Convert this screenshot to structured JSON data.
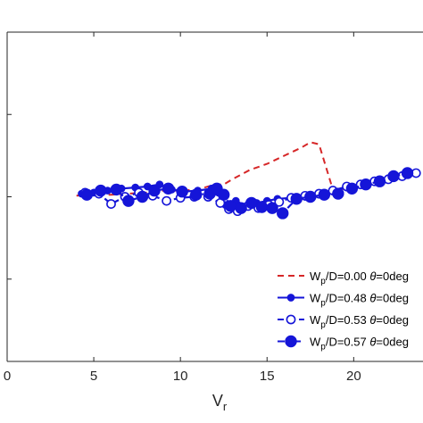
{
  "chart_data": {
    "type": "line",
    "title": "",
    "xlabel": "V",
    "xlabel_sub": "r",
    "ylabel": "",
    "xlim": [
      0,
      24
    ],
    "ylim": [
      0,
      1.6
    ],
    "xticks": [
      0,
      5,
      10,
      15,
      20
    ],
    "xtick_labels": [
      "0",
      "5",
      "10",
      "15",
      "20"
    ],
    "yticks": [
      0.4,
      0.8,
      1.2
    ],
    "grid": false,
    "legend_position": "bottom-right",
    "series": [
      {
        "name": "W_p/D=0.00 θ=0deg",
        "legend_label": {
          "pre": "W",
          "sub": "p",
          "post": "/D=0.00 ",
          "theta": "θ",
          "tail": "=0deg"
        },
        "color": "#d62728",
        "style": "dashed",
        "marker": "none",
        "x": [
          4.0,
          5.0,
          6.0,
          7.0,
          8.0,
          9.0,
          10.0,
          11.0,
          12.0,
          12.5,
          13.0,
          14.0,
          15.0,
          16.0,
          17.0,
          17.5,
          18.0,
          18.8,
          20.0,
          21.0,
          22.0,
          23.0,
          23.8
        ],
        "y": [
          0.805,
          0.81,
          0.81,
          0.815,
          0.82,
          0.83,
          0.83,
          0.835,
          0.86,
          0.86,
          0.885,
          0.93,
          0.96,
          1.0,
          1.04,
          1.065,
          1.055,
          0.835,
          0.84,
          0.86,
          0.88,
          0.9,
          0.92
        ]
      },
      {
        "name": "W_p/D=0.48 θ=0deg",
        "legend_label": {
          "pre": "W",
          "sub": "p",
          "post": "/D=0.48 ",
          "theta": "θ",
          "tail": "=0deg"
        },
        "color": "#1515d8",
        "style": "solid",
        "marker": "filled-small",
        "x": [
          4.3,
          5.0,
          5.8,
          6.6,
          7.4,
          8.1,
          8.8,
          9.5,
          10.2,
          11.0,
          11.8,
          12.2,
          12.6,
          13.2,
          13.8,
          14.4,
          15.0,
          15.6,
          16.4,
          17.2,
          18.0,
          18.8,
          19.6,
          20.4,
          21.2,
          22.0,
          22.8,
          23.6
        ],
        "y": [
          0.815,
          0.82,
          0.83,
          0.84,
          0.845,
          0.85,
          0.86,
          0.835,
          0.825,
          0.83,
          0.84,
          0.82,
          0.76,
          0.78,
          0.755,
          0.77,
          0.78,
          0.79,
          0.795,
          0.8,
          0.81,
          0.83,
          0.845,
          0.86,
          0.875,
          0.89,
          0.905,
          0.915
        ]
      },
      {
        "name": "W_p/D=0.53 θ=0deg",
        "legend_label": {
          "pre": "W",
          "sub": "p",
          "post": "/D=0.53 ",
          "theta": "θ",
          "tail": "=0deg"
        },
        "color": "#1515d8",
        "style": "dashed",
        "marker": "open-circle",
        "x": [
          4.5,
          5.3,
          6.0,
          6.8,
          7.6,
          8.4,
          9.2,
          10.0,
          10.8,
          11.6,
          12.3,
          12.8,
          13.3,
          13.9,
          14.5,
          15.1,
          15.7,
          16.4,
          17.2,
          18.0,
          18.8,
          19.6,
          20.4,
          21.2,
          22.0,
          22.8,
          23.6
        ],
        "y": [
          0.82,
          0.815,
          0.765,
          0.8,
          0.82,
          0.805,
          0.78,
          0.795,
          0.8,
          0.8,
          0.77,
          0.74,
          0.73,
          0.755,
          0.745,
          0.76,
          0.775,
          0.795,
          0.805,
          0.815,
          0.83,
          0.85,
          0.86,
          0.875,
          0.885,
          0.9,
          0.915
        ]
      },
      {
        "name": "W_p/D=0.57 θ=0deg",
        "legend_label": {
          "pre": "W",
          "sub": "p",
          "post": "/D=0.57 ",
          "theta": "θ",
          "tail": "=0deg"
        },
        "color": "#1515d8",
        "style": "dashdot",
        "marker": "filled-large",
        "x": [
          4.6,
          5.4,
          6.3,
          7.0,
          7.8,
          8.5,
          9.3,
          10.1,
          10.9,
          11.7,
          12.1,
          12.5,
          12.9,
          13.5,
          14.1,
          14.7,
          15.3,
          15.9,
          16.7,
          17.5,
          18.3,
          19.1,
          19.9,
          20.7,
          21.5,
          22.3,
          23.1
        ],
        "y": [
          0.81,
          0.83,
          0.835,
          0.78,
          0.8,
          0.83,
          0.84,
          0.825,
          0.81,
          0.815,
          0.84,
          0.81,
          0.755,
          0.745,
          0.77,
          0.75,
          0.745,
          0.72,
          0.79,
          0.8,
          0.81,
          0.815,
          0.84,
          0.86,
          0.875,
          0.9,
          0.915
        ]
      }
    ]
  }
}
